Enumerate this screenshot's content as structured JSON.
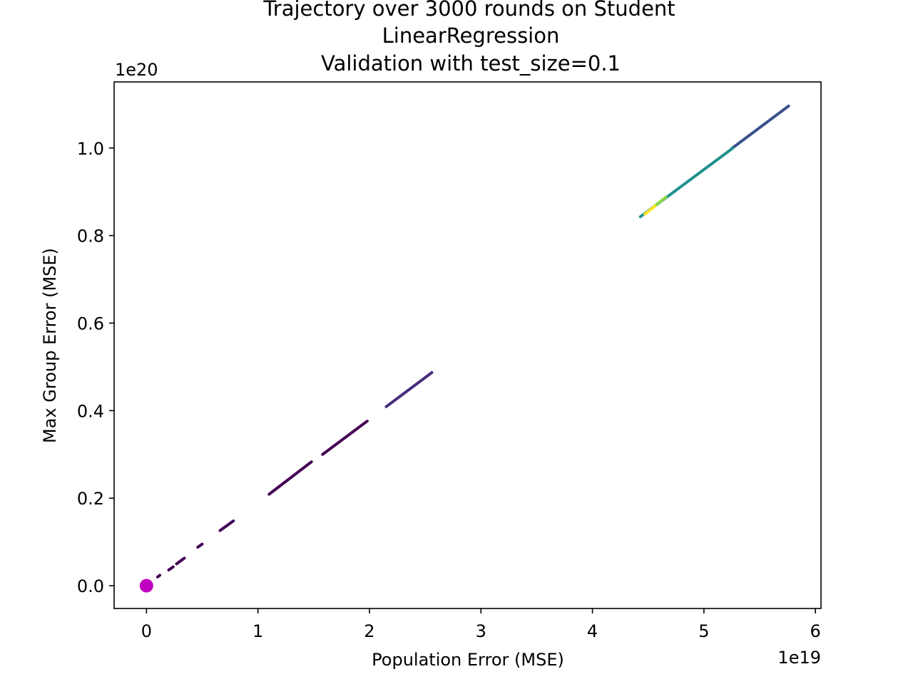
{
  "chart_data": {
    "type": "scatter",
    "title_lines": [
      "Trajectory over 3000 rounds on Student",
      "LinearRegression",
      "Validation with test_size=0.1"
    ],
    "xlabel": "Population Error (MSE)",
    "ylabel": "Max Group Error (MSE)",
    "x_offset_label": "1e19",
    "y_offset_label": "1e20",
    "x_scale": 1e+19,
    "y_scale": 1e+20,
    "xlim": [
      -0.29,
      6.05
    ],
    "ylim": [
      -0.052,
      1.151
    ],
    "x_ticks": [
      {
        "value": 0,
        "label": "0"
      },
      {
        "value": 1,
        "label": "1"
      },
      {
        "value": 2,
        "label": "2"
      },
      {
        "value": 3,
        "label": "3"
      },
      {
        "value": 4,
        "label": "4"
      },
      {
        "value": 5,
        "label": "5"
      },
      {
        "value": 6,
        "label": "6"
      }
    ],
    "y_ticks": [
      {
        "value": 0.0,
        "label": "0.0"
      },
      {
        "value": 0.2,
        "label": "0.2"
      },
      {
        "value": 0.4,
        "label": "0.4"
      },
      {
        "value": 0.6,
        "label": "0.6"
      },
      {
        "value": 0.8,
        "label": "0.8"
      },
      {
        "value": 1.0,
        "label": "1.0"
      }
    ],
    "series": [
      {
        "name": "trajectory-early",
        "color": "#440154",
        "segments": [
          {
            "x0": 0.1,
            "y0": 0.02,
            "x1": 0.12,
            "y1": 0.024
          },
          {
            "x0": 0.2,
            "y0": 0.036,
            "x1": 0.24,
            "y1": 0.043
          },
          {
            "x0": 0.27,
            "y0": 0.05,
            "x1": 0.34,
            "y1": 0.063
          },
          {
            "x0": 0.46,
            "y0": 0.088,
            "x1": 0.5,
            "y1": 0.095
          },
          {
            "x0": 0.66,
            "y0": 0.126,
            "x1": 0.78,
            "y1": 0.148
          },
          {
            "x0": 1.1,
            "y0": 0.209,
            "x1": 1.48,
            "y1": 0.283
          },
          {
            "x0": 1.58,
            "y0": 0.3,
            "x1": 1.98,
            "y1": 0.376
          }
        ]
      },
      {
        "name": "trajectory-mid",
        "color": "#472d7b",
        "segments": [
          {
            "x0": 2.15,
            "y0": 0.409,
            "x1": 2.56,
            "y1": 0.487
          }
        ]
      },
      {
        "name": "trajectory-late",
        "color": "#3b528b",
        "segments": [
          {
            "x0": 5.25,
            "y0": 0.999,
            "x1": 5.76,
            "y1": 1.096
          }
        ]
      },
      {
        "name": "trajectory-teal",
        "color": "#21908d",
        "segments": [
          {
            "x0": 4.43,
            "y0": 0.843,
            "x1": 5.26,
            "y1": 1.0
          }
        ]
      },
      {
        "name": "trajectory-green",
        "color": "#8fd744",
        "segments": [
          {
            "x0": 4.55,
            "y0": 0.866,
            "x1": 4.66,
            "y1": 0.888
          }
        ]
      },
      {
        "name": "trajectory-yellow",
        "color": "#fde725",
        "segments": [
          {
            "x0": 4.47,
            "y0": 0.849,
            "x1": 4.56,
            "y1": 0.867
          }
        ]
      }
    ],
    "highlight_point": {
      "x": 0.0,
      "y": 0.0,
      "color": "#bf00bf"
    }
  }
}
